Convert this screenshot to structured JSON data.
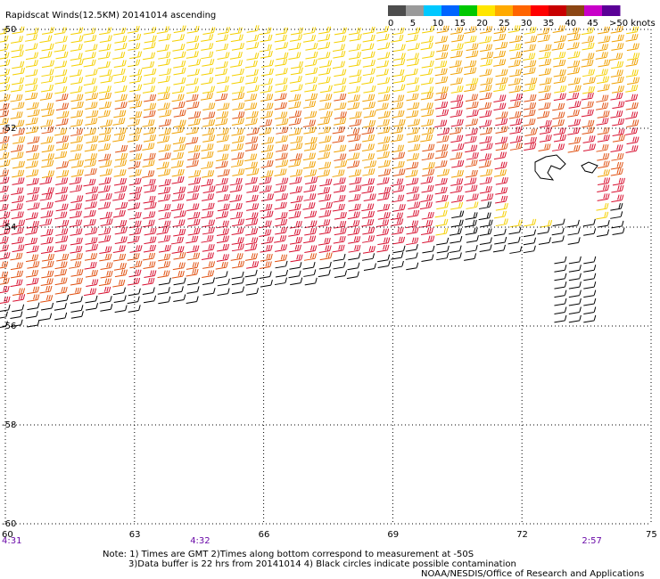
{
  "title": "Rapidscat Winds(12.5KM) 20141014 ascending",
  "legend": {
    "ticks": [
      "0",
      "5",
      "10",
      "15",
      "20",
      "25",
      "30",
      "35",
      "40",
      "45",
      ">50 knots"
    ],
    "colors": [
      "#4d4d4d",
      "#9a9a9a",
      "#00c8ff",
      "#0064ff",
      "#00c800",
      "#ffe600",
      "#ffaa00",
      "#ff6400",
      "#ff0000",
      "#c80000",
      "#8b4513",
      "#c800c8",
      "#5a0096"
    ]
  },
  "chart_data": {
    "type": "wind-barb-map",
    "lat_ticks": [
      "-50",
      "-52",
      "-54",
      "-56",
      "-58",
      "-60"
    ],
    "lon_ticks": [
      "60",
      "63",
      "66",
      "69",
      "72",
      "75"
    ],
    "lat_range": [
      -60,
      -50
    ],
    "lon_range": [
      60,
      75
    ],
    "grid": "dotted",
    "times": [
      {
        "label": "4:31",
        "lon": 60
      },
      {
        "label": "4:32",
        "lon": 64.5
      },
      {
        "label": "2:57",
        "lon": 73.6
      }
    ],
    "wind_field": {
      "direction": "westerly",
      "speed_bands_knots": [
        {
          "from_lat": -50,
          "to_lat": -51.3,
          "speed": 22
        },
        {
          "from_lat": -51.3,
          "to_lat": -53.0,
          "speed": 27
        },
        {
          "from_lat": -53.0,
          "to_lat": -54.5,
          "speed": 33
        },
        {
          "from_lat": -54.5,
          "to_lat": -55.8,
          "speed": 30
        },
        {
          "from_lat": -55.8,
          "to_lat": -56.2,
          "speed": 8
        }
      ]
    }
  },
  "notes": {
    "line1": "Note: 1) Times are GMT 2)Times along bottom correspond to measurement at -50S",
    "line2": "3)Data buffer is 22 hrs from 20141014 4) Black circles indicate possible contamination",
    "credit": "NOAA/NESDIS/Office of Research and Applications"
  }
}
